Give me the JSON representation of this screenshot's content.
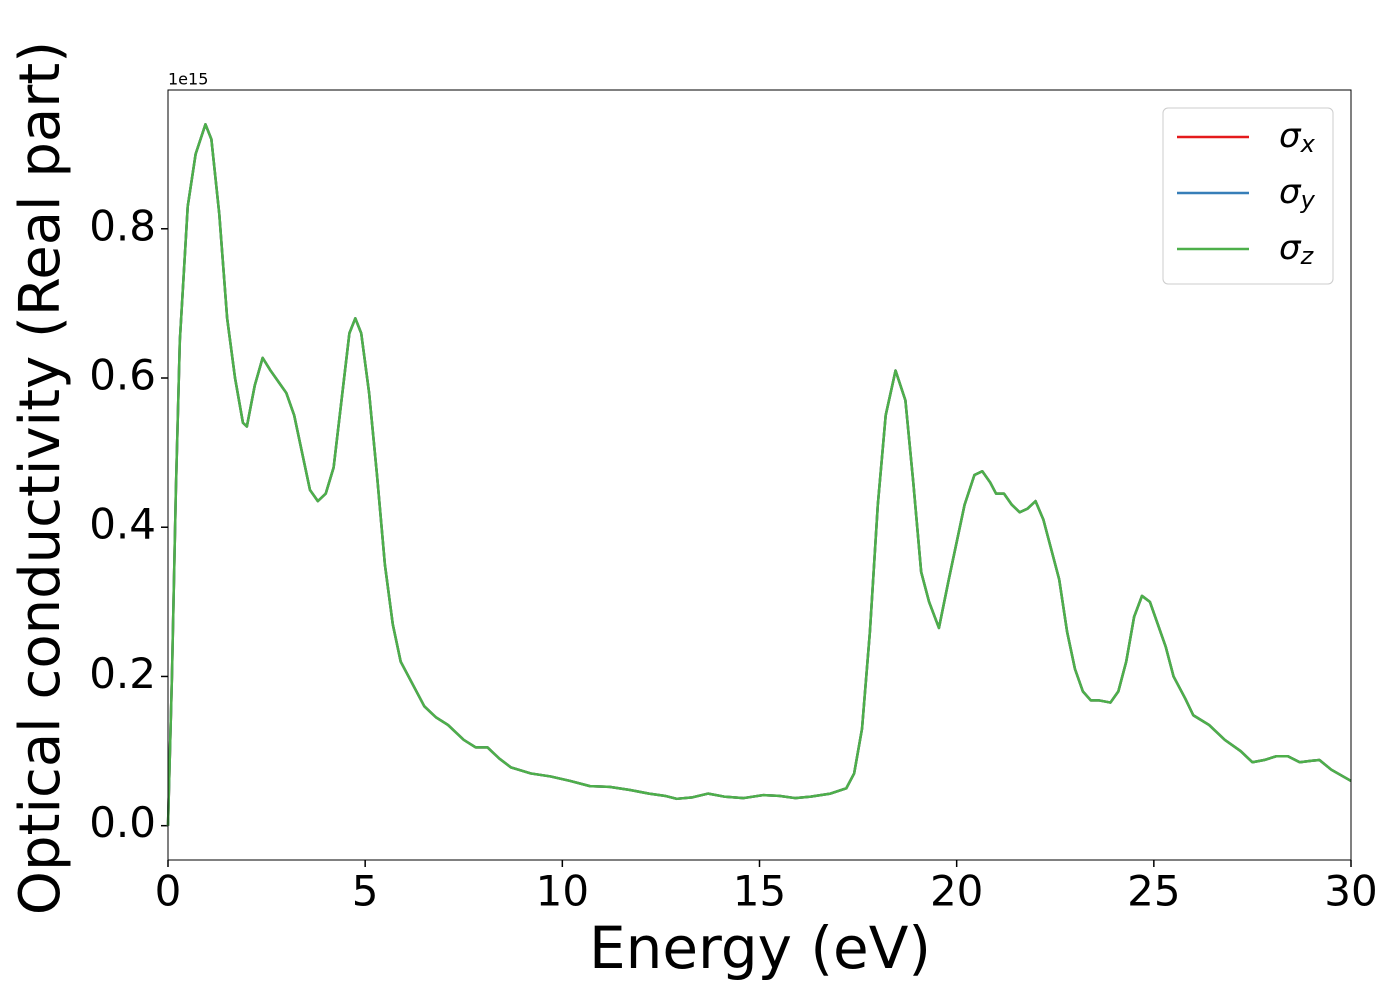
{
  "chart_data": {
    "type": "line",
    "xlabel": "Energy (eV)",
    "ylabel": "Optical conductivity (Real part)",
    "offset_label": "1e15",
    "x": [
      0,
      0.1,
      0.2,
      0.3,
      0.5,
      0.7,
      0.95,
      1.1,
      1.3,
      1.5,
      1.7,
      1.9,
      2.0,
      2.2,
      2.4,
      2.6,
      2.8,
      3.0,
      3.2,
      3.4,
      3.6,
      3.8,
      4.0,
      4.2,
      4.4,
      4.6,
      4.75,
      4.9,
      5.1,
      5.3,
      5.5,
      5.7,
      5.9,
      6.2,
      6.5,
      6.8,
      7.1,
      7.5,
      7.8,
      8.1,
      8.4,
      8.7,
      9.2,
      9.7,
      10.2,
      10.7,
      11.2,
      11.7,
      12.2,
      12.6,
      12.9,
      13.3,
      13.7,
      14.1,
      14.6,
      15.1,
      15.5,
      15.9,
      16.3,
      16.8,
      17.2,
      17.4,
      17.6,
      17.8,
      18.0,
      18.2,
      18.45,
      18.7,
      18.9,
      19.1,
      19.3,
      19.55,
      19.8,
      20.0,
      20.2,
      20.45,
      20.65,
      20.85,
      21.0,
      21.2,
      21.4,
      21.6,
      21.8,
      22.0,
      22.2,
      22.4,
      22.6,
      22.8,
      23.0,
      23.2,
      23.4,
      23.6,
      23.9,
      24.1,
      24.3,
      24.5,
      24.7,
      24.9,
      25.1,
      25.3,
      25.5,
      25.8,
      26.0,
      26.4,
      26.8,
      27.2,
      27.5,
      27.8,
      28.1,
      28.4,
      28.7,
      29.0,
      29.2,
      29.5,
      29.8,
      30.0
    ],
    "series": [
      {
        "name": "σx",
        "color": "#e41a1c",
        "values": [
          0,
          0.2,
          0.45,
          0.65,
          0.83,
          0.9,
          0.94,
          0.92,
          0.82,
          0.68,
          0.6,
          0.54,
          0.535,
          0.59,
          0.627,
          0.61,
          0.595,
          0.58,
          0.55,
          0.5,
          0.45,
          0.435,
          0.445,
          0.48,
          0.57,
          0.66,
          0.68,
          0.66,
          0.58,
          0.47,
          0.35,
          0.27,
          0.22,
          0.19,
          0.16,
          0.145,
          0.135,
          0.115,
          0.105,
          0.105,
          0.09,
          0.078,
          0.07,
          0.066,
          0.06,
          0.053,
          0.052,
          0.048,
          0.043,
          0.04,
          0.036,
          0.038,
          0.043,
          0.039,
          0.037,
          0.041,
          0.04,
          0.037,
          0.039,
          0.043,
          0.05,
          0.07,
          0.13,
          0.26,
          0.43,
          0.55,
          0.61,
          0.57,
          0.46,
          0.34,
          0.3,
          0.265,
          0.33,
          0.38,
          0.43,
          0.47,
          0.475,
          0.46,
          0.445,
          0.445,
          0.43,
          0.42,
          0.425,
          0.435,
          0.41,
          0.37,
          0.33,
          0.26,
          0.21,
          0.18,
          0.168,
          0.168,
          0.165,
          0.18,
          0.22,
          0.28,
          0.308,
          0.3,
          0.27,
          0.24,
          0.2,
          0.17,
          0.148,
          0.135,
          0.115,
          0.1,
          0.085,
          0.088,
          0.093,
          0.093,
          0.085,
          0.087,
          0.088,
          0.075,
          0.066,
          0.06
        ]
      },
      {
        "name": "σy",
        "color": "#377eb8",
        "values": [
          0,
          0.2,
          0.45,
          0.65,
          0.83,
          0.9,
          0.94,
          0.92,
          0.82,
          0.68,
          0.6,
          0.54,
          0.535,
          0.59,
          0.627,
          0.61,
          0.595,
          0.58,
          0.55,
          0.5,
          0.45,
          0.435,
          0.445,
          0.48,
          0.57,
          0.66,
          0.68,
          0.66,
          0.58,
          0.47,
          0.35,
          0.27,
          0.22,
          0.19,
          0.16,
          0.145,
          0.135,
          0.115,
          0.105,
          0.105,
          0.09,
          0.078,
          0.07,
          0.066,
          0.06,
          0.053,
          0.052,
          0.048,
          0.043,
          0.04,
          0.036,
          0.038,
          0.043,
          0.039,
          0.037,
          0.041,
          0.04,
          0.037,
          0.039,
          0.043,
          0.05,
          0.07,
          0.13,
          0.26,
          0.43,
          0.55,
          0.61,
          0.57,
          0.46,
          0.34,
          0.3,
          0.265,
          0.33,
          0.38,
          0.43,
          0.47,
          0.475,
          0.46,
          0.445,
          0.445,
          0.43,
          0.42,
          0.425,
          0.435,
          0.41,
          0.37,
          0.33,
          0.26,
          0.21,
          0.18,
          0.168,
          0.168,
          0.165,
          0.18,
          0.22,
          0.28,
          0.308,
          0.3,
          0.27,
          0.24,
          0.2,
          0.17,
          0.148,
          0.135,
          0.115,
          0.1,
          0.085,
          0.088,
          0.093,
          0.093,
          0.085,
          0.087,
          0.088,
          0.075,
          0.066,
          0.06
        ]
      },
      {
        "name": "σz",
        "color": "#4daf4a",
        "values": [
          0,
          0.2,
          0.45,
          0.65,
          0.83,
          0.9,
          0.94,
          0.92,
          0.82,
          0.68,
          0.6,
          0.54,
          0.535,
          0.59,
          0.627,
          0.61,
          0.595,
          0.58,
          0.55,
          0.5,
          0.45,
          0.435,
          0.445,
          0.48,
          0.57,
          0.66,
          0.68,
          0.66,
          0.58,
          0.47,
          0.35,
          0.27,
          0.22,
          0.19,
          0.16,
          0.145,
          0.135,
          0.115,
          0.105,
          0.105,
          0.09,
          0.078,
          0.07,
          0.066,
          0.06,
          0.053,
          0.052,
          0.048,
          0.043,
          0.04,
          0.036,
          0.038,
          0.043,
          0.039,
          0.037,
          0.041,
          0.04,
          0.037,
          0.039,
          0.043,
          0.05,
          0.07,
          0.13,
          0.26,
          0.43,
          0.55,
          0.61,
          0.57,
          0.46,
          0.34,
          0.3,
          0.265,
          0.33,
          0.38,
          0.43,
          0.47,
          0.475,
          0.46,
          0.445,
          0.445,
          0.43,
          0.42,
          0.425,
          0.435,
          0.41,
          0.37,
          0.33,
          0.26,
          0.21,
          0.18,
          0.168,
          0.168,
          0.165,
          0.18,
          0.22,
          0.28,
          0.308,
          0.3,
          0.27,
          0.24,
          0.2,
          0.17,
          0.148,
          0.135,
          0.115,
          0.1,
          0.085,
          0.088,
          0.093,
          0.093,
          0.085,
          0.087,
          0.088,
          0.075,
          0.066,
          0.06
        ]
      }
    ],
    "xlim": [
      0,
      30
    ],
    "xticks": [
      0,
      5,
      10,
      15,
      20,
      25,
      30
    ],
    "ylim": [
      -0.046,
      0.986
    ],
    "yticks": [
      {
        "value": 0,
        "label": "0.0"
      },
      0.2,
      0.4,
      0.6,
      0.8
    ],
    "legend": "upper right",
    "grid": false
  }
}
